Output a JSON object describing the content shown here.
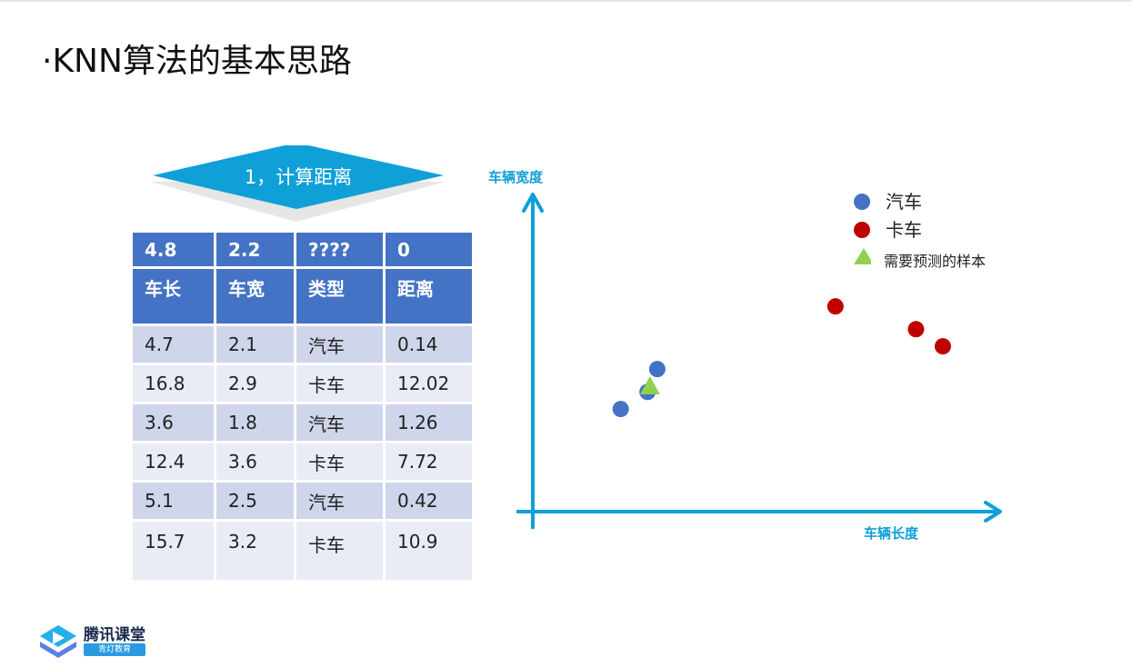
{
  "slide": {
    "title": "·KNN算法的基本思路",
    "step_label": "1，计算距离"
  },
  "table": {
    "query_row": [
      "4.8",
      "2.2",
      "????",
      "0"
    ],
    "headers": [
      "车长",
      "车宽",
      "类型",
      "距离"
    ],
    "rows": [
      [
        "4.7",
        "2.1",
        "汽车",
        "0.14"
      ],
      [
        "16.8",
        "2.9",
        "卡车",
        "12.02"
      ],
      [
        "3.6",
        "1.8",
        "汽车",
        "1.26"
      ],
      [
        "12.4",
        "3.6",
        "卡车",
        "7.72"
      ],
      [
        "5.1",
        "2.5",
        "汽车",
        "0.42"
      ],
      [
        "15.7",
        "3.2",
        "卡车",
        "10.9"
      ]
    ]
  },
  "chart_data": {
    "type": "scatter",
    "xlabel": "车辆长度",
    "ylabel": "车辆宽度",
    "series": [
      {
        "name": "汽车",
        "color": "#4472c4",
        "marker": "circle",
        "points": [
          {
            "x": 3.6,
            "y": 1.8
          },
          {
            "x": 4.7,
            "y": 2.1
          },
          {
            "x": 5.1,
            "y": 2.5
          }
        ]
      },
      {
        "name": "卡车",
        "color": "#c00000",
        "marker": "circle",
        "points": [
          {
            "x": 12.4,
            "y": 3.6
          },
          {
            "x": 15.7,
            "y": 3.2
          },
          {
            "x": 16.8,
            "y": 2.9
          }
        ]
      },
      {
        "name": "需要预测的样本",
        "color": "#92d050",
        "marker": "triangle",
        "points": [
          {
            "x": 4.8,
            "y": 2.2
          }
        ]
      }
    ],
    "xlim": [
      0,
      19
    ],
    "ylim": [
      0,
      5.5
    ],
    "legend": "top-right",
    "grid": false
  },
  "logo": {
    "brand": "腾讯课堂",
    "sub": "青灯教育"
  },
  "colors": {
    "accent": "#0fa0d8",
    "table_header": "#4472c4",
    "row_odd": "#cfd5ea",
    "row_even": "#e9ebf5"
  }
}
